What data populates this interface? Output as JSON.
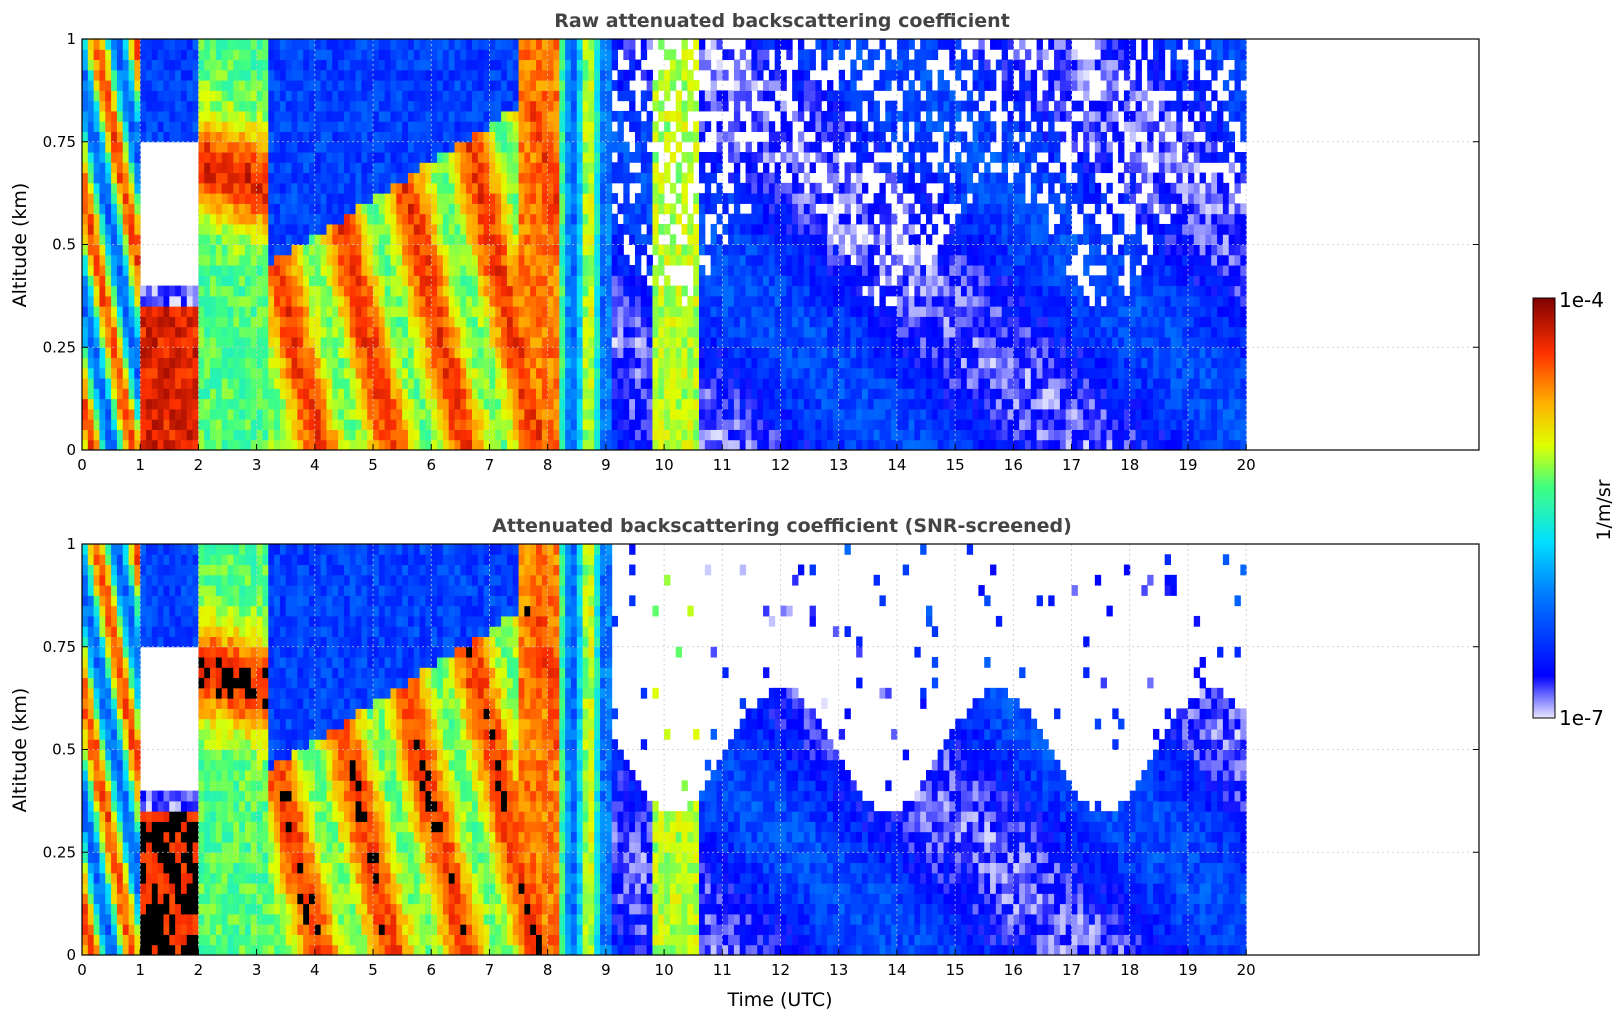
{
  "figure": {
    "colorbar": {
      "label": "1/m/sr",
      "max_label": "1e-4",
      "min_label": "1e-7",
      "scale": "log",
      "colormap": "jet"
    }
  },
  "chart_data": [
    {
      "type": "heatmap",
      "title": "Raw attenuated backscattering coefficient",
      "xlabel": "",
      "ylabel": "Altitude (km)",
      "xlim": [
        0,
        24
      ],
      "ylim": [
        0,
        1
      ],
      "x_ticks": [
        "0",
        "1",
        "2",
        "3",
        "4",
        "5",
        "6",
        "7",
        "8",
        "9",
        "10",
        "11",
        "12",
        "13",
        "14",
        "15",
        "16",
        "17",
        "18",
        "19",
        "20"
      ],
      "y_ticks": [
        "0",
        "0.25",
        "0.5",
        "0.75",
        "1"
      ],
      "data_time_range_utc": [
        0,
        20
      ],
      "grid": true,
      "screened": false
    },
    {
      "type": "heatmap",
      "title": "Attenuated backscattering coefficient (SNR-screened)",
      "xlabel": "Time (UTC)",
      "ylabel": "Altitude (km)",
      "xlim": [
        0,
        24
      ],
      "ylim": [
        0,
        1
      ],
      "x_ticks": [
        "0",
        "1",
        "2",
        "3",
        "4",
        "5",
        "6",
        "7",
        "8",
        "9",
        "10",
        "11",
        "12",
        "13",
        "14",
        "15",
        "16",
        "17",
        "18",
        "19",
        "20"
      ],
      "y_ticks": [
        "0",
        "0.25",
        "0.5",
        "0.75",
        "1"
      ],
      "data_time_range_utc": [
        0,
        20
      ],
      "grid": true,
      "screened": true
    }
  ]
}
